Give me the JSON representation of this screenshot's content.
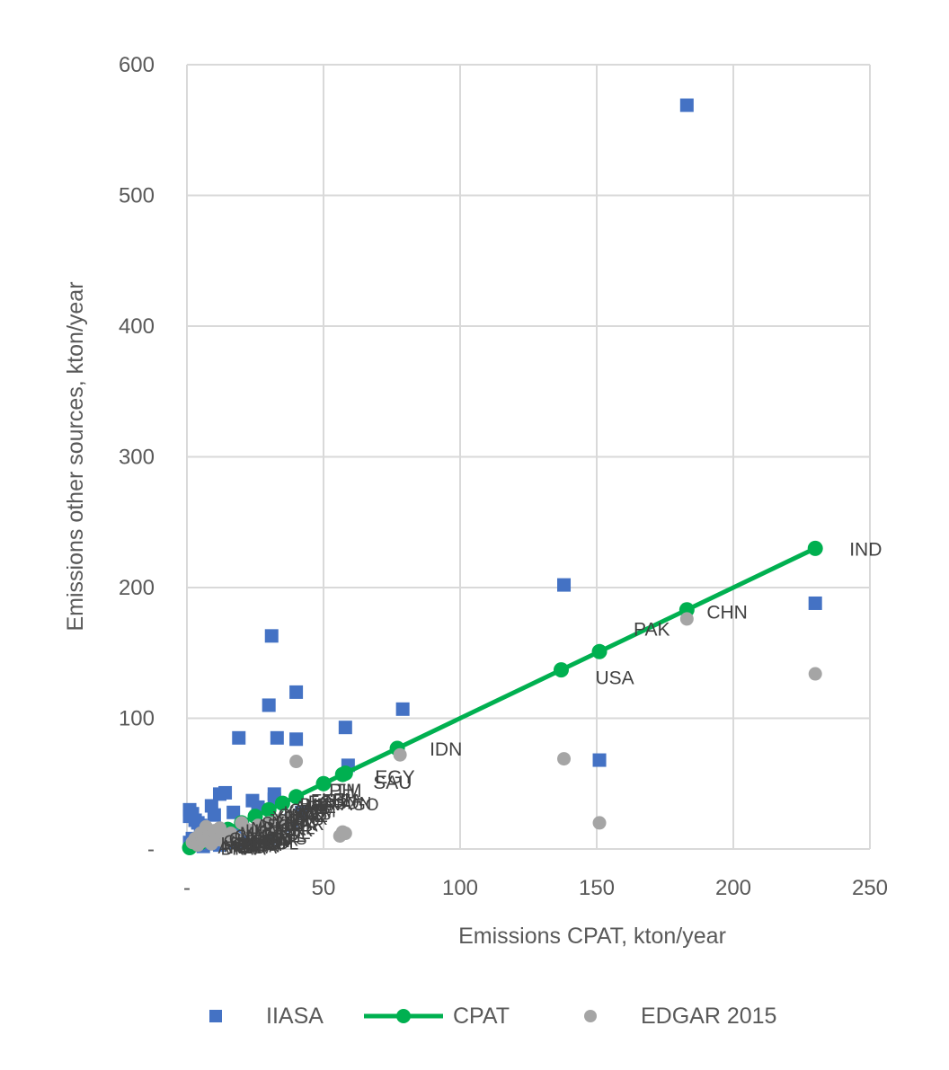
{
  "chart_data": {
    "type": "scatter",
    "xlabel": "Emissions CPAT, kton/year",
    "ylabel": "Emissions other sources, kton/year",
    "xlim": [
      0,
      250
    ],
    "ylim": [
      0,
      600
    ],
    "x_ticks": [
      "-",
      "50",
      "100",
      "150",
      "200",
      "250"
    ],
    "y_ticks": [
      "-",
      "100",
      "200",
      "300",
      "400",
      "500",
      "600"
    ],
    "grid": true,
    "legend_position": "bottom",
    "colors": {
      "IIASA": "#4472c4",
      "CPAT": "#00b050",
      "EDGAR 2015": "#a5a5a5"
    },
    "series": [
      {
        "name": "IIASA",
        "marker": "square",
        "points": [
          [
            1,
            30
          ],
          [
            1,
            25
          ],
          [
            2,
            27
          ],
          [
            3,
            22
          ],
          [
            4,
            20
          ],
          [
            5,
            18
          ],
          [
            6,
            15
          ],
          [
            7,
            12
          ],
          [
            8,
            10
          ],
          [
            9,
            33
          ],
          [
            10,
            26
          ],
          [
            12,
            42
          ],
          [
            14,
            43
          ],
          [
            17,
            28
          ],
          [
            19,
            85
          ],
          [
            24,
            37
          ],
          [
            26,
            32
          ],
          [
            30,
            110
          ],
          [
            31,
            163
          ],
          [
            32,
            42
          ],
          [
            32,
            38
          ],
          [
            33,
            85
          ],
          [
            40,
            120
          ],
          [
            40,
            84
          ],
          [
            58,
            93
          ],
          [
            59,
            64
          ],
          [
            79,
            107
          ],
          [
            138,
            202
          ],
          [
            151,
            68
          ],
          [
            183,
            569
          ],
          [
            230,
            188
          ],
          [
            1,
            5
          ],
          [
            2,
            8
          ],
          [
            3,
            3
          ],
          [
            5,
            6
          ],
          [
            6,
            2
          ],
          [
            8,
            4
          ],
          [
            10,
            7
          ],
          [
            12,
            3
          ],
          [
            14,
            9
          ],
          [
            16,
            5
          ],
          [
            18,
            11
          ],
          [
            20,
            6
          ],
          [
            22,
            8
          ],
          [
            24,
            12
          ],
          [
            26,
            10
          ],
          [
            28,
            14
          ],
          [
            30,
            9
          ],
          [
            35,
            18
          ],
          [
            38,
            22
          ],
          [
            42,
            28
          ]
        ]
      },
      {
        "name": "CPAT",
        "marker": "circle-line",
        "points": [
          [
            1,
            1
          ],
          [
            5,
            5
          ],
          [
            10,
            10
          ],
          [
            15,
            15
          ],
          [
            20,
            20
          ],
          [
            25,
            25
          ],
          [
            30,
            30
          ],
          [
            35,
            35
          ],
          [
            40,
            40
          ],
          [
            50,
            50
          ],
          [
            57,
            57
          ],
          [
            58,
            58
          ],
          [
            77,
            77
          ],
          [
            137,
            137
          ],
          [
            151,
            151
          ],
          [
            183,
            183
          ],
          [
            230,
            230
          ]
        ]
      },
      {
        "name": "EDGAR 2015",
        "marker": "circle",
        "points": [
          [
            2,
            5
          ],
          [
            3,
            8
          ],
          [
            4,
            3
          ],
          [
            5,
            12
          ],
          [
            6,
            6
          ],
          [
            7,
            17
          ],
          [
            8,
            9
          ],
          [
            9,
            4
          ],
          [
            10,
            14
          ],
          [
            11,
            7
          ],
          [
            12,
            16
          ],
          [
            13,
            10
          ],
          [
            14,
            5
          ],
          [
            16,
            12
          ],
          [
            18,
            8
          ],
          [
            20,
            20
          ],
          [
            22,
            15
          ],
          [
            24,
            10
          ],
          [
            26,
            18
          ],
          [
            28,
            12
          ],
          [
            30,
            20
          ],
          [
            32,
            14
          ],
          [
            34,
            22
          ],
          [
            36,
            18
          ],
          [
            38,
            25
          ],
          [
            40,
            67
          ],
          [
            56,
            10
          ],
          [
            57,
            13
          ],
          [
            58,
            12
          ],
          [
            78,
            72
          ],
          [
            138,
            69
          ],
          [
            151,
            20
          ],
          [
            183,
            176
          ],
          [
            230,
            134
          ]
        ]
      }
    ],
    "cluster_label_points": [
      [
        14,
        2
      ],
      [
        15,
        1
      ],
      [
        16,
        3
      ],
      [
        17,
        2
      ],
      [
        18,
        4
      ],
      [
        19,
        1
      ],
      [
        20,
        3
      ],
      [
        21,
        5
      ],
      [
        22,
        2
      ],
      [
        23,
        4
      ],
      [
        24,
        6
      ],
      [
        25,
        3
      ],
      [
        26,
        5
      ],
      [
        27,
        7
      ],
      [
        28,
        4
      ],
      [
        29,
        6
      ],
      [
        30,
        8
      ],
      [
        31,
        5
      ],
      [
        32,
        7
      ],
      [
        33,
        9
      ],
      [
        34,
        11
      ],
      [
        35,
        13
      ],
      [
        36,
        15
      ],
      [
        37,
        17
      ],
      [
        38,
        19
      ],
      [
        39,
        20
      ],
      [
        40,
        22
      ],
      [
        41,
        24
      ],
      [
        42,
        26
      ],
      [
        43,
        28
      ],
      [
        44,
        30
      ],
      [
        45,
        33
      ],
      [
        46,
        35
      ],
      [
        47,
        37
      ],
      [
        48,
        38
      ],
      [
        52,
        39
      ],
      [
        55,
        38
      ],
      [
        57,
        36
      ],
      [
        59,
        35
      ],
      [
        16,
        7
      ],
      [
        18,
        9
      ],
      [
        20,
        11
      ],
      [
        22,
        13
      ],
      [
        24,
        15
      ],
      [
        26,
        17
      ],
      [
        28,
        19
      ],
      [
        30,
        21
      ],
      [
        32,
        23
      ],
      [
        34,
        25
      ],
      [
        36,
        27
      ],
      [
        38,
        29
      ],
      [
        40,
        31
      ],
      [
        42,
        33
      ],
      [
        44,
        35
      ],
      [
        15,
        5
      ],
      [
        25,
        9
      ],
      [
        35,
        16
      ]
    ],
    "annotations": [
      {
        "text": "IND",
        "x": 230,
        "y": 230
      },
      {
        "text": "CHN",
        "x": 183,
        "y": 183
      },
      {
        "text": "PAK",
        "x": 151,
        "y": 151
      },
      {
        "text": "USA",
        "x": 137,
        "y": 137
      },
      {
        "text": "IDN",
        "x": 77,
        "y": 77
      },
      {
        "text": "EGY",
        "x": 57,
        "y": 57
      },
      {
        "text": "SAU",
        "x": 57,
        "y": 57
      },
      {
        "text": "PH",
        "x": 52,
        "y": 40
      },
      {
        "text": "TM",
        "x": 54,
        "y": 40
      }
    ]
  }
}
